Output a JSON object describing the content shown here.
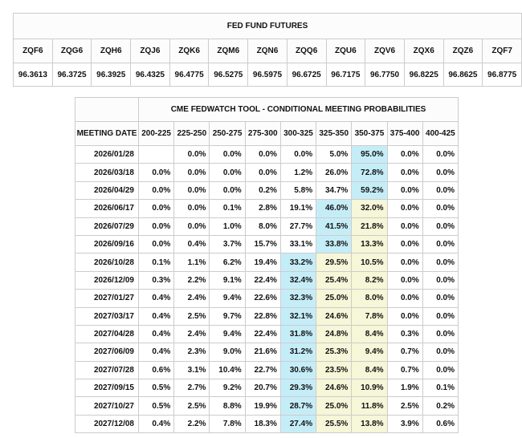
{
  "colors": {
    "highlight_blue": "#c5edf8",
    "highlight_yellow": "#f6f6d8"
  },
  "futures_table": {
    "title": "FED FUND FUTURES",
    "columns": [
      "ZQF6",
      "ZQG6",
      "ZQH6",
      "ZQJ6",
      "ZQK6",
      "ZQM6",
      "ZQN6",
      "ZQQ6",
      "ZQU6",
      "ZQV6",
      "ZQX6",
      "ZQZ6",
      "ZQF7"
    ],
    "prices": [
      "96.3613",
      "96.3725",
      "96.3925",
      "96.4325",
      "96.4775",
      "96.5275",
      "96.5975",
      "96.6725",
      "96.7175",
      "96.7750",
      "96.8225",
      "96.8625",
      "96.8775"
    ]
  },
  "fedwatch_table": {
    "title": "CME FEDWATCH TOOL - CONDITIONAL MEETING PROBABILITIES",
    "date_header": "MEETING DATE",
    "range_headers": [
      "200-225",
      "225-250",
      "250-275",
      "275-300",
      "300-325",
      "325-350",
      "350-375",
      "375-400",
      "400-425"
    ],
    "rows": [
      {
        "date": "2026/01/28",
        "values": [
          "",
          "0.0%",
          "0.0%",
          "0.0%",
          "0.0%",
          "5.0%",
          "95.0%",
          "0.0%",
          "0.0%"
        ],
        "highlights": [
          "",
          "",
          "",
          "",
          "",
          "",
          "blue",
          "",
          ""
        ]
      },
      {
        "date": "2026/03/18",
        "values": [
          "0.0%",
          "0.0%",
          "0.0%",
          "0.0%",
          "1.2%",
          "26.0%",
          "72.8%",
          "0.0%",
          "0.0%"
        ],
        "highlights": [
          "",
          "",
          "",
          "",
          "",
          "",
          "blue",
          "",
          ""
        ]
      },
      {
        "date": "2026/04/29",
        "values": [
          "0.0%",
          "0.0%",
          "0.0%",
          "0.2%",
          "5.8%",
          "34.7%",
          "59.2%",
          "0.0%",
          "0.0%"
        ],
        "highlights": [
          "",
          "",
          "",
          "",
          "",
          "",
          "blue",
          "",
          ""
        ]
      },
      {
        "date": "2026/06/17",
        "values": [
          "0.0%",
          "0.0%",
          "0.1%",
          "2.8%",
          "19.1%",
          "46.0%",
          "32.0%",
          "0.0%",
          "0.0%"
        ],
        "highlights": [
          "",
          "",
          "",
          "",
          "",
          "blue",
          "yellow",
          "",
          ""
        ]
      },
      {
        "date": "2026/07/29",
        "values": [
          "0.0%",
          "0.0%",
          "1.0%",
          "8.0%",
          "27.7%",
          "41.5%",
          "21.8%",
          "0.0%",
          "0.0%"
        ],
        "highlights": [
          "",
          "",
          "",
          "",
          "",
          "blue",
          "yellow",
          "",
          ""
        ]
      },
      {
        "date": "2026/09/16",
        "values": [
          "0.0%",
          "0.4%",
          "3.7%",
          "15.7%",
          "33.1%",
          "33.8%",
          "13.3%",
          "0.0%",
          "0.0%"
        ],
        "highlights": [
          "",
          "",
          "",
          "",
          "",
          "blue",
          "yellow",
          "",
          ""
        ]
      },
      {
        "date": "2026/10/28",
        "values": [
          "0.1%",
          "1.1%",
          "6.2%",
          "19.4%",
          "33.2%",
          "29.5%",
          "10.5%",
          "0.0%",
          "0.0%"
        ],
        "highlights": [
          "",
          "",
          "",
          "",
          "blue",
          "yellow",
          "yellow",
          "",
          ""
        ]
      },
      {
        "date": "2026/12/09",
        "values": [
          "0.3%",
          "2.2%",
          "9.1%",
          "22.4%",
          "32.4%",
          "25.4%",
          "8.2%",
          "0.0%",
          "0.0%"
        ],
        "highlights": [
          "",
          "",
          "",
          "",
          "blue",
          "yellow",
          "yellow",
          "",
          ""
        ]
      },
      {
        "date": "2027/01/27",
        "values": [
          "0.4%",
          "2.4%",
          "9.4%",
          "22.6%",
          "32.3%",
          "25.0%",
          "8.0%",
          "0.0%",
          "0.0%"
        ],
        "highlights": [
          "",
          "",
          "",
          "",
          "blue",
          "yellow",
          "yellow",
          "",
          ""
        ]
      },
      {
        "date": "2027/03/17",
        "values": [
          "0.4%",
          "2.5%",
          "9.7%",
          "22.8%",
          "32.1%",
          "24.6%",
          "7.8%",
          "0.0%",
          "0.0%"
        ],
        "highlights": [
          "",
          "",
          "",
          "",
          "blue",
          "yellow",
          "yellow",
          "",
          ""
        ]
      },
      {
        "date": "2027/04/28",
        "values": [
          "0.4%",
          "2.4%",
          "9.4%",
          "22.4%",
          "31.8%",
          "24.8%",
          "8.4%",
          "0.3%",
          "0.0%"
        ],
        "highlights": [
          "",
          "",
          "",
          "",
          "blue",
          "yellow",
          "yellow",
          "",
          ""
        ]
      },
      {
        "date": "2027/06/09",
        "values": [
          "0.4%",
          "2.3%",
          "9.0%",
          "21.6%",
          "31.2%",
          "25.3%",
          "9.4%",
          "0.7%",
          "0.0%"
        ],
        "highlights": [
          "",
          "",
          "",
          "",
          "blue",
          "yellow",
          "yellow",
          "",
          ""
        ]
      },
      {
        "date": "2027/07/28",
        "values": [
          "0.6%",
          "3.1%",
          "10.4%",
          "22.7%",
          "30.6%",
          "23.5%",
          "8.4%",
          "0.7%",
          "0.0%"
        ],
        "highlights": [
          "",
          "",
          "",
          "",
          "blue",
          "yellow",
          "yellow",
          "",
          ""
        ]
      },
      {
        "date": "2027/09/15",
        "values": [
          "0.5%",
          "2.7%",
          "9.2%",
          "20.7%",
          "29.3%",
          "24.6%",
          "10.9%",
          "1.9%",
          "0.1%"
        ],
        "highlights": [
          "",
          "",
          "",
          "",
          "blue",
          "yellow",
          "yellow",
          "",
          ""
        ]
      },
      {
        "date": "2027/10/27",
        "values": [
          "0.5%",
          "2.5%",
          "8.8%",
          "19.9%",
          "28.7%",
          "25.0%",
          "11.8%",
          "2.5%",
          "0.2%"
        ],
        "highlights": [
          "",
          "",
          "",
          "",
          "blue",
          "yellow",
          "yellow",
          "",
          ""
        ]
      },
      {
        "date": "2027/12/08",
        "values": [
          "0.4%",
          "2.2%",
          "7.8%",
          "18.3%",
          "27.4%",
          "25.5%",
          "13.8%",
          "3.9%",
          "0.6%"
        ],
        "highlights": [
          "",
          "",
          "",
          "",
          "blue",
          "yellow",
          "yellow",
          "",
          ""
        ]
      }
    ]
  }
}
